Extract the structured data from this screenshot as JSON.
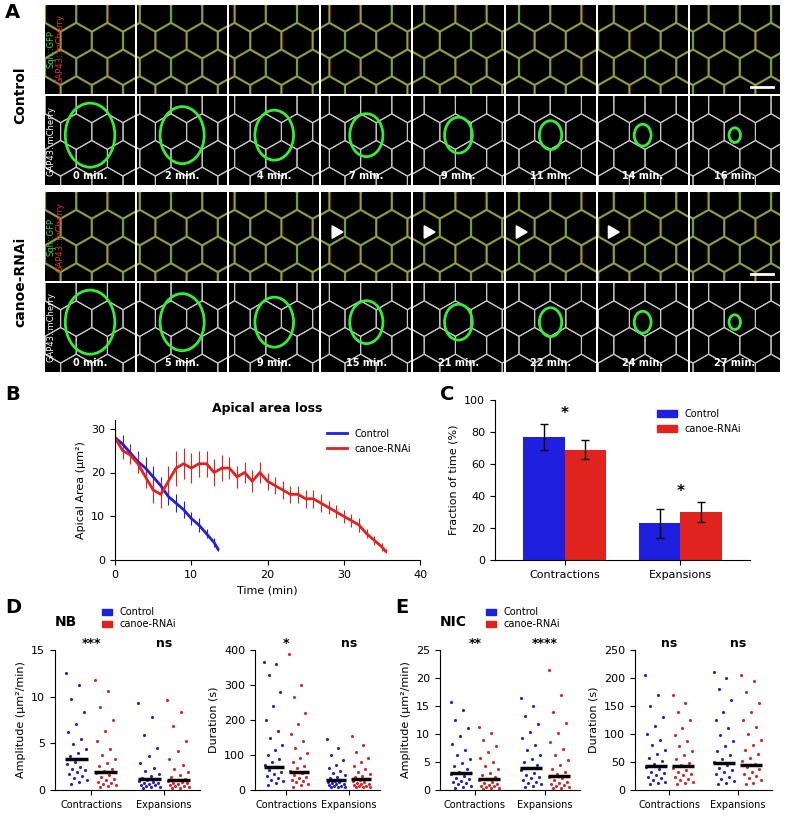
{
  "panel_labels": [
    "A",
    "B",
    "C",
    "D",
    "E"
  ],
  "image_panel": {
    "rows": [
      {
        "label": "Control",
        "channels": [
          {
            "name": "Sqh::GFP",
            "color": "#3fd13f"
          },
          {
            "name": "GAP43::mCherry",
            "color": "#e03030"
          }
        ],
        "gray_channel": "GAP43::mCherry",
        "times": [
          "0 min.",
          "2 min.",
          "4 min.",
          "7 min.",
          "9 min.",
          "11 min.",
          "14 min.",
          "16 min."
        ]
      },
      {
        "label": "canoe-RNAi",
        "channels": [
          {
            "name": "Sqh::GFP",
            "color": "#3fd13f"
          },
          {
            "name": "GAP43::mCherry",
            "color": "#e03030"
          }
        ],
        "gray_channel": "GAP43::mCherry",
        "times": [
          "0 min.",
          "5 min.",
          "9 min.",
          "15 min.",
          "21 min.",
          "22 min.",
          "24 min.",
          "27 min."
        ]
      }
    ]
  },
  "chart_data": [
    {
      "type": "line",
      "title": "Apical area loss",
      "x_label": "Time (min)",
      "y_label": "Apical Area (µm²)",
      "xlim": [
        0,
        40
      ],
      "xticks": [
        0,
        10,
        20,
        30,
        40
      ],
      "ylim": [
        0,
        32
      ],
      "yticks": [
        0,
        10,
        20,
        30
      ],
      "legend": "upper right",
      "series": [
        {
          "name": "Control",
          "color": "#1f1fe0",
          "x": [
            0,
            1,
            2,
            3,
            4,
            5,
            6,
            7,
            8,
            9,
            10,
            11,
            12,
            13,
            13.5
          ],
          "values": [
            28,
            26.5,
            24.5,
            22.5,
            21,
            19,
            17,
            14.5,
            13,
            11.5,
            9.5,
            8,
            6,
            4,
            2.5
          ],
          "errors": [
            2,
            2,
            2,
            2.5,
            2.5,
            2.5,
            2,
            2,
            2,
            2,
            1.5,
            1.5,
            1,
            1,
            0.5
          ]
        },
        {
          "name": "canoe-RNAi",
          "color": "#e0231f",
          "x": [
            0,
            1,
            2,
            3,
            4,
            5,
            6,
            7,
            8,
            9,
            10,
            11,
            12,
            13,
            14,
            15,
            16,
            17,
            18,
            19,
            20,
            21,
            22,
            23,
            24,
            25,
            26,
            27,
            28,
            29,
            30,
            31,
            32,
            33,
            34,
            35,
            35.5
          ],
          "values": [
            28,
            25,
            24,
            22,
            19,
            16,
            15,
            18,
            21,
            22,
            21,
            22,
            22,
            20,
            21,
            21,
            19,
            20,
            18,
            20,
            18,
            17,
            16,
            15,
            15,
            14,
            14,
            13,
            12,
            11,
            10,
            9,
            8,
            6,
            4.5,
            3,
            2
          ],
          "errors": [
            1,
            2,
            2,
            2,
            2.5,
            3,
            3,
            3.5,
            4,
            3.5,
            3.5,
            3,
            3,
            3,
            3,
            2.5,
            2.5,
            2.5,
            2.5,
            2.5,
            2,
            2,
            2,
            2,
            2,
            2,
            2,
            2,
            1.5,
            1.5,
            1.5,
            1.5,
            1.5,
            1,
            1,
            1,
            0.5
          ]
        }
      ]
    },
    {
      "type": "bar",
      "y_label": "Fraction of time (%)",
      "categories": [
        "Contractions",
        "Expansions"
      ],
      "ylim": [
        0,
        100
      ],
      "yticks": [
        0,
        20,
        40,
        60,
        80,
        100
      ],
      "legend": "upper right",
      "series": [
        {
          "name": "Control",
          "color": "#1f1fe0",
          "values": [
            77,
            23
          ],
          "errors": [
            8,
            9
          ]
        },
        {
          "name": "canoe-RNAi",
          "color": "#e0231f",
          "values": [
            69,
            30
          ],
          "errors": [
            6,
            6
          ]
        }
      ],
      "annotations": [
        "*",
        "*"
      ]
    },
    {
      "type": "scatter",
      "title": "NB",
      "y_label": "Amplitude (µm²/min)",
      "categories": [
        "Contractions",
        "Expansions"
      ],
      "ylim": [
        0,
        15
      ],
      "yticks": [
        0,
        5,
        10,
        15
      ],
      "legend": "lower left",
      "series": [
        {
          "name": "Control",
          "color": "#1f1fe0",
          "means": [
            3.3,
            1.2
          ],
          "values": [
            [
              12.5,
              11.2,
              9.8,
              8.4,
              7.1,
              6.2,
              5.5,
              4.9,
              4.4,
              4.0,
              3.6,
              3.3,
              3.0,
              2.8,
              2.5,
              2.3,
              2.1,
              1.9,
              1.7,
              1.5,
              1.3,
              1.1,
              0.9,
              0.6
            ],
            [
              9.3,
              7.8,
              5.9,
              4.5,
              3.6,
              2.9,
              2.4,
              2.0,
              1.7,
              1.5,
              1.3,
              1.2,
              1.1,
              1.0,
              0.9,
              0.8,
              0.7,
              0.6,
              0.5,
              0.5,
              0.4,
              0.3,
              0.3,
              0.2
            ]
          ]
        },
        {
          "name": "canoe-RNAi",
          "color": "#e0231f",
          "means": [
            1.9,
            1.1
          ],
          "values": [
            [
              11.8,
              10.6,
              8.9,
              7.5,
              6.3,
              5.2,
              4.4,
              3.8,
              3.3,
              2.9,
              2.6,
              2.3,
              2.0,
              1.8,
              1.6,
              1.4,
              1.2,
              1.1,
              0.9,
              0.8,
              0.6,
              0.5,
              0.4,
              0.3
            ],
            [
              9.6,
              8.4,
              6.9,
              5.3,
              4.2,
              3.3,
              2.7,
              2.2,
              1.9,
              1.6,
              1.4,
              1.2,
              1.1,
              1.0,
              0.9,
              0.8,
              0.7,
              0.6,
              0.5,
              0.4,
              0.4,
              0.3,
              0.2,
              0.2
            ]
          ]
        }
      ],
      "annotations": [
        "***",
        "ns"
      ]
    },
    {
      "type": "scatter",
      "y_label": "Duration (s)",
      "categories": [
        "Contractions",
        "Expansions"
      ],
      "ylim": [
        0,
        400
      ],
      "yticks": [
        0,
        100,
        200,
        300,
        400
      ],
      "series": [
        {
          "name": "Control",
          "color": "#1f1fe0",
          "means": [
            65,
            30
          ],
          "values": [
            [
              365,
              360,
              330,
              280,
              240,
              200,
              170,
              150,
              130,
              115,
              100,
              90,
              80,
              72,
              65,
              58,
              52,
              46,
              40,
              35,
              30,
              25,
              20,
              15
            ],
            [
              145,
              120,
              100,
              85,
              72,
              62,
              54,
              48,
              42,
              38,
              34,
              30,
              27,
              24,
              22,
              20,
              18,
              16,
              14,
              12,
              11,
              10,
              9,
              8
            ]
          ]
        },
        {
          "name": "canoe-RNAi",
          "color": "#e0231f",
          "means": [
            52,
            32
          ],
          "values": [
            [
              390,
              300,
              265,
              220,
              190,
              160,
              140,
              120,
              105,
              92,
              80,
              70,
              62,
              55,
              48,
              42,
              38,
              34,
              30,
              26,
              22,
              18,
              14,
              10
            ],
            [
              155,
              130,
              110,
              92,
              80,
              70,
              60,
              52,
              46,
              40,
              36,
              32,
              29,
              26,
              23,
              20,
              18,
              16,
              14,
              12,
              11,
              10,
              9,
              8
            ]
          ]
        }
      ],
      "annotations": [
        "*",
        "ns"
      ]
    },
    {
      "type": "scatter",
      "title": "NIC",
      "y_label": "Amplitude (µm²/min)",
      "categories": [
        "Contractions",
        "Expansions"
      ],
      "ylim": [
        0,
        25
      ],
      "yticks": [
        0,
        5,
        10,
        15,
        20,
        25
      ],
      "legend": "lower left",
      "series": [
        {
          "name": "Control",
          "color": "#1f1fe0",
          "means": [
            3.0,
            3.9
          ],
          "values": [
            [
              15.8,
              14.2,
              12.5,
              11.0,
              9.6,
              8.3,
              7.2,
              6.3,
              5.5,
              4.8,
              4.2,
              3.7,
              3.2,
              2.8,
              2.5,
              2.2,
              1.9,
              1.6,
              1.4,
              1.2,
              1.0,
              0.8,
              0.6,
              0.4
            ],
            [
              16.5,
              15.0,
              13.2,
              11.8,
              10.4,
              9.2,
              8.1,
              7.1,
              6.3,
              5.6,
              5.0,
              4.4,
              3.9,
              3.5,
              3.1,
              2.7,
              2.4,
              2.1,
              1.8,
              1.5,
              1.2,
              1.0,
              0.7,
              0.5
            ]
          ]
        },
        {
          "name": "canoe-RNAi",
          "color": "#e0231f",
          "means": [
            2.0,
            2.5
          ],
          "values": [
            [
              11.2,
              10.1,
              8.9,
              7.8,
              6.8,
              5.8,
              5.0,
              4.3,
              3.7,
              3.1,
              2.7,
              2.3,
              2.0,
              1.7,
              1.5,
              1.3,
              1.1,
              0.9,
              0.8,
              0.7,
              0.5,
              0.4,
              0.3,
              0.2
            ],
            [
              21.5,
              17.0,
              14.0,
              12.0,
              10.2,
              8.6,
              7.3,
              6.2,
              5.3,
              4.5,
              3.8,
              3.3,
              2.8,
              2.4,
              2.1,
              1.8,
              1.5,
              1.3,
              1.1,
              0.9,
              0.7,
              0.5,
              0.4,
              0.3
            ]
          ]
        }
      ],
      "annotations": [
        "**",
        "****"
      ]
    },
    {
      "type": "scatter",
      "y_label": "Duration (s)",
      "categories": [
        "Contractions",
        "Expansions"
      ],
      "ylim": [
        0,
        250
      ],
      "yticks": [
        0,
        50,
        100,
        150,
        200,
        250
      ],
      "series": [
        {
          "name": "Control",
          "color": "#1f1fe0",
          "means": [
            42,
            48
          ],
          "values": [
            [
              205,
              170,
              150,
              130,
              115,
              100,
              90,
              80,
              72,
              64,
              57,
              51,
              46,
              41,
              37,
              33,
              30,
              27,
              24,
              21,
              18,
              15,
              12,
              10
            ],
            [
              210,
              200,
              180,
              160,
              140,
              125,
              110,
              98,
              88,
              78,
              70,
              62,
              56,
              50,
              45,
              40,
              36,
              32,
              28,
              24,
              20,
              16,
              13,
              10
            ]
          ]
        },
        {
          "name": "canoe-RNAi",
          "color": "#e0231f",
          "means": [
            42,
            45
          ],
          "values": [
            [
              170,
              155,
              140,
              125,
              110,
              98,
              88,
              78,
              70,
              62,
              55,
              49,
              44,
              40,
              36,
              32,
              29,
              26,
              23,
              20,
              17,
              14,
              12,
              10
            ],
            [
              205,
              195,
              175,
              155,
              140,
              125,
              112,
              100,
              90,
              80,
              72,
              64,
              57,
              51,
              46,
              41,
              37,
              33,
              29,
              25,
              21,
              17,
              13,
              10
            ]
          ]
        }
      ],
      "annotations": [
        "ns",
        "ns"
      ]
    }
  ]
}
